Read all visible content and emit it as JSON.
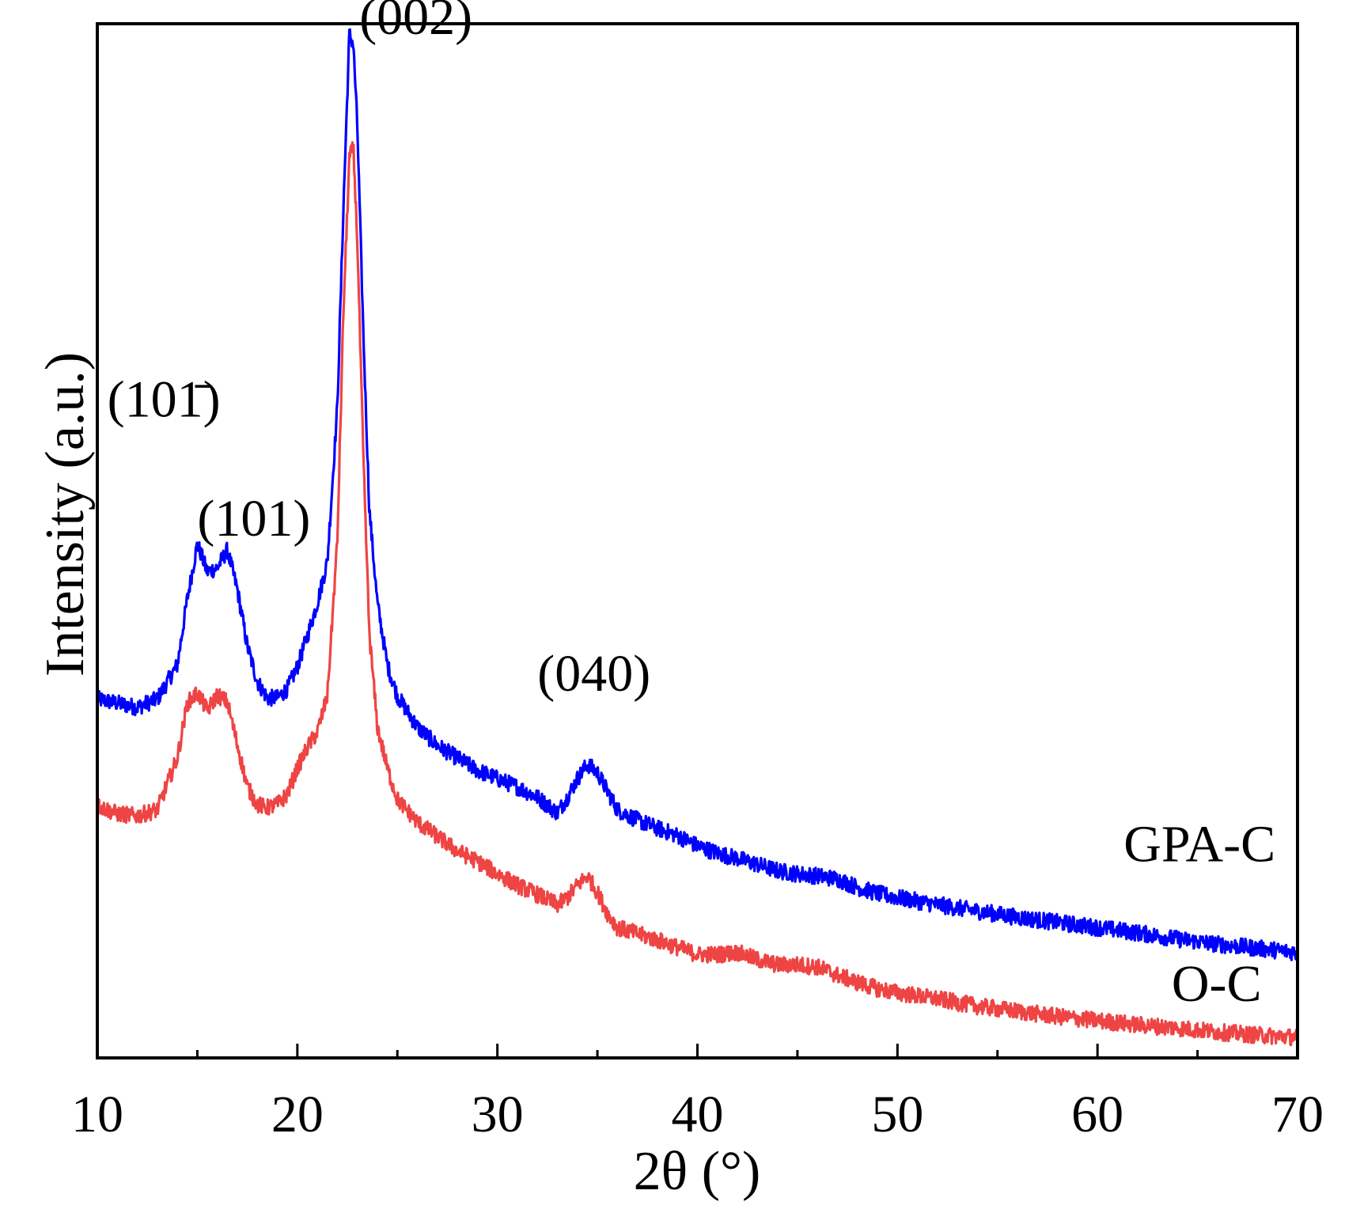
{
  "chart_data": {
    "type": "line",
    "title": "",
    "xlabel": "2θ (°)",
    "ylabel": "Intensity (a.u.)",
    "xlim": [
      10,
      70
    ],
    "ylim": [
      0,
      1.0
    ],
    "xticks": [
      "10",
      "20",
      "30",
      "40",
      "50",
      "60",
      "70"
    ],
    "yticks_shown": false,
    "series": [
      {
        "name": "GPA-C",
        "color": "#0000ff",
        "x": [
          10,
          11,
          12,
          13,
          14,
          14.5,
          15,
          15.5,
          16,
          16.5,
          17,
          17.5,
          18,
          18.5,
          19,
          19.5,
          20,
          20.5,
          21,
          21.5,
          22,
          22.3,
          22.6,
          22.8,
          23,
          23.3,
          23.6,
          24,
          24.5,
          25,
          26,
          27,
          28,
          29,
          30,
          31,
          32,
          33,
          33.5,
          34,
          34.5,
          35,
          35.5,
          36,
          37,
          38,
          39,
          40,
          41,
          42,
          43,
          44,
          45,
          46,
          47,
          48,
          49,
          50,
          52,
          54,
          56,
          58,
          60,
          62,
          64,
          66,
          68,
          70
        ],
        "values": [
          0.347,
          0.343,
          0.339,
          0.347,
          0.38,
          0.444,
          0.497,
          0.47,
          0.474,
          0.491,
          0.453,
          0.398,
          0.364,
          0.348,
          0.348,
          0.357,
          0.378,
          0.408,
          0.44,
          0.48,
          0.63,
          0.82,
          0.99,
          0.98,
          0.9,
          0.7,
          0.53,
          0.44,
          0.38,
          0.35,
          0.32,
          0.302,
          0.29,
          0.278,
          0.27,
          0.262,
          0.252,
          0.237,
          0.252,
          0.27,
          0.284,
          0.276,
          0.258,
          0.24,
          0.23,
          0.222,
          0.215,
          0.205,
          0.198,
          0.193,
          0.187,
          0.181,
          0.178,
          0.176,
          0.173,
          0.165,
          0.159,
          0.155,
          0.148,
          0.142,
          0.136,
          0.131,
          0.126,
          0.121,
          0.115,
          0.11,
          0.106,
          0.102
        ]
      },
      {
        "name": "O-C",
        "color": "#ef4444",
        "x": [
          10,
          11,
          12,
          13,
          14,
          14.5,
          15,
          15.5,
          16,
          16.5,
          17,
          17.5,
          18,
          18.5,
          19,
          19.5,
          20,
          20.5,
          21,
          21.5,
          22,
          22.3,
          22.6,
          22.8,
          23,
          23.3,
          23.6,
          24,
          24.5,
          25,
          26,
          27,
          28,
          29,
          30,
          31,
          32,
          33,
          33.5,
          34,
          34.5,
          35,
          35.5,
          36,
          37,
          38,
          39,
          40,
          41,
          42,
          43,
          44,
          45,
          46,
          47,
          48,
          49,
          50,
          52,
          54,
          56,
          58,
          60,
          62,
          64,
          66,
          68,
          70
        ],
        "values": [
          0.244,
          0.236,
          0.234,
          0.24,
          0.29,
          0.343,
          0.353,
          0.336,
          0.351,
          0.344,
          0.303,
          0.262,
          0.245,
          0.242,
          0.245,
          0.255,
          0.28,
          0.3,
          0.315,
          0.35,
          0.5,
          0.72,
          0.87,
          0.88,
          0.79,
          0.58,
          0.41,
          0.32,
          0.28,
          0.25,
          0.228,
          0.214,
          0.2,
          0.19,
          0.178,
          0.167,
          0.158,
          0.148,
          0.155,
          0.167,
          0.176,
          0.16,
          0.14,
          0.126,
          0.12,
          0.114,
          0.107,
          0.1,
          0.1,
          0.102,
          0.095,
          0.09,
          0.09,
          0.088,
          0.08,
          0.073,
          0.067,
          0.063,
          0.057,
          0.05,
          0.045,
          0.04,
          0.036,
          0.032,
          0.029,
          0.025,
          0.022,
          0.02
        ]
      }
    ],
    "annotations": [
      {
        "text": "(002)",
        "x": 23.1,
        "y": 0.99
      },
      {
        "text": "(101̄)",
        "x": 10.5,
        "y": 0.62
      },
      {
        "text": "(101)",
        "x": 15.0,
        "y": 0.505
      },
      {
        "text": "(040)",
        "x": 32.0,
        "y": 0.355
      }
    ],
    "legend_labels": [
      {
        "text": "GPA-C",
        "x": 68.9,
        "y": 0.19
      },
      {
        "text": "O-C",
        "x": 68.2,
        "y": 0.055
      }
    ]
  }
}
